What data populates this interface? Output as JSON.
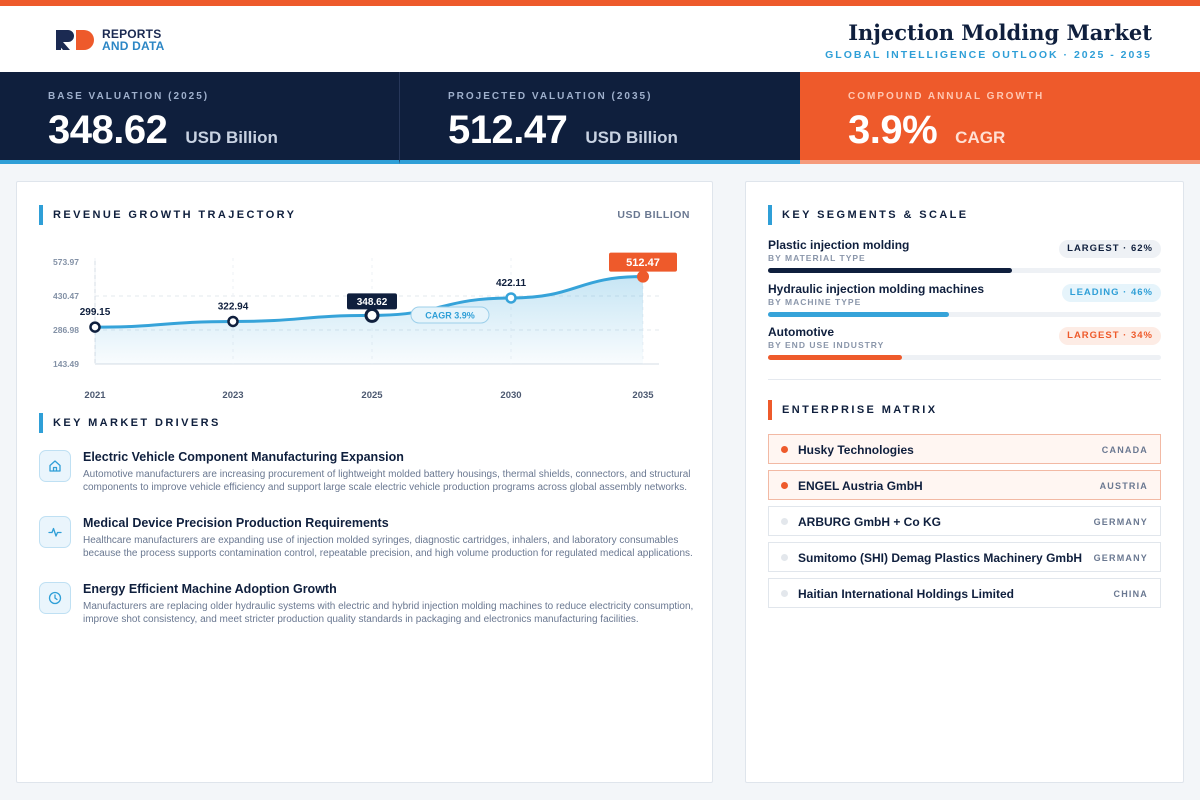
{
  "header": {
    "logo_line1": "REPORTS",
    "logo_line2": "AND DATA",
    "title": "Injection Molding Market",
    "subtitle": "GLOBAL INTELLIGENCE OUTLOOK  ·  2025 - 2035"
  },
  "kpis": [
    {
      "label": "BASE VALUATION (2025)",
      "value": "348.62",
      "unit": "USD Billion"
    },
    {
      "label": "PROJECTED VALUATION (2035)",
      "value": "512.47",
      "unit": "USD Billion"
    },
    {
      "label": "COMPOUND ANNUAL GROWTH",
      "value": "3.9%",
      "unit": "CAGR"
    }
  ],
  "trajectory": {
    "title": "REVENUE GROWTH TRAJECTORY",
    "unit": "USD BILLION"
  },
  "chart_data": {
    "type": "area",
    "x": [
      "2021",
      "2023",
      "2025",
      "2030",
      "2035"
    ],
    "values": [
      299.15,
      322.94,
      348.62,
      422.11,
      512.47
    ],
    "value_labels": [
      "299.15",
      "322.94",
      "348.62",
      "422.11",
      "512.47"
    ],
    "y_ticks": [
      "573.97",
      "430.47",
      "286.98",
      "143.49"
    ],
    "ylim": [
      143.49,
      573.97
    ],
    "annotation": "CAGR 3.9%",
    "colors": {
      "line": "#36a3d9",
      "highlight": "#0f1f3d",
      "final": "#ee5a2b"
    }
  },
  "drivers": {
    "title": "KEY MARKET DRIVERS",
    "items": [
      {
        "icon": "home-icon",
        "title": "Electric Vehicle Component Manufacturing Expansion",
        "desc": "Automotive manufacturers are increasing procurement of lightweight molded battery housings, thermal shields, connectors, and structural components to improve vehicle efficiency and support large scale electric vehicle production programs across global assembly networks."
      },
      {
        "icon": "pulse-icon",
        "title": "Medical Device Precision Production Requirements",
        "desc": "Healthcare manufacturers are expanding use of injection molded syringes, diagnostic cartridges, inhalers, and laboratory consumables because the process supports contamination control, repeatable precision, and high volume production for regulated medical applications."
      },
      {
        "icon": "clock-icon",
        "title": "Energy Efficient Machine Adoption Growth",
        "desc": "Manufacturers are replacing older hydraulic systems with electric and hybrid injection molding machines to reduce electricity consumption, improve shot consistency, and meet stricter production quality standards in packaging and electronics manufacturing facilities."
      }
    ]
  },
  "segments": {
    "title": "KEY SEGMENTS & SCALE",
    "items": [
      {
        "name": "Plastic injection molding",
        "sub": "BY MATERIAL TYPE",
        "badge": "LARGEST · 62%",
        "share": 0.62,
        "color": "#0f1f3d"
      },
      {
        "name": "Hydraulic injection molding machines",
        "sub": "BY MACHINE TYPE",
        "badge": "LEADING · 46%",
        "share": 0.46,
        "color": "#36a3d9"
      },
      {
        "name": "Automotive",
        "sub": "BY END USE INDUSTRY",
        "badge": "LARGEST · 34%",
        "share": 0.34,
        "color": "#ee5a2b"
      }
    ]
  },
  "matrix": {
    "title": "ENTERPRISE MATRIX",
    "rows": [
      {
        "name": "Husky Technologies",
        "country": "CANADA",
        "highlight": true
      },
      {
        "name": "ENGEL Austria GmbH",
        "country": "AUSTRIA",
        "highlight": true
      },
      {
        "name": "ARBURG GmbH + Co KG",
        "country": "GERMANY",
        "highlight": false
      },
      {
        "name": "Sumitomo (SHI) Demag Plastics Machinery GmbH",
        "country": "GERMANY",
        "highlight": false
      },
      {
        "name": "Haitian International Holdings Limited",
        "country": "CHINA",
        "highlight": false
      }
    ]
  }
}
